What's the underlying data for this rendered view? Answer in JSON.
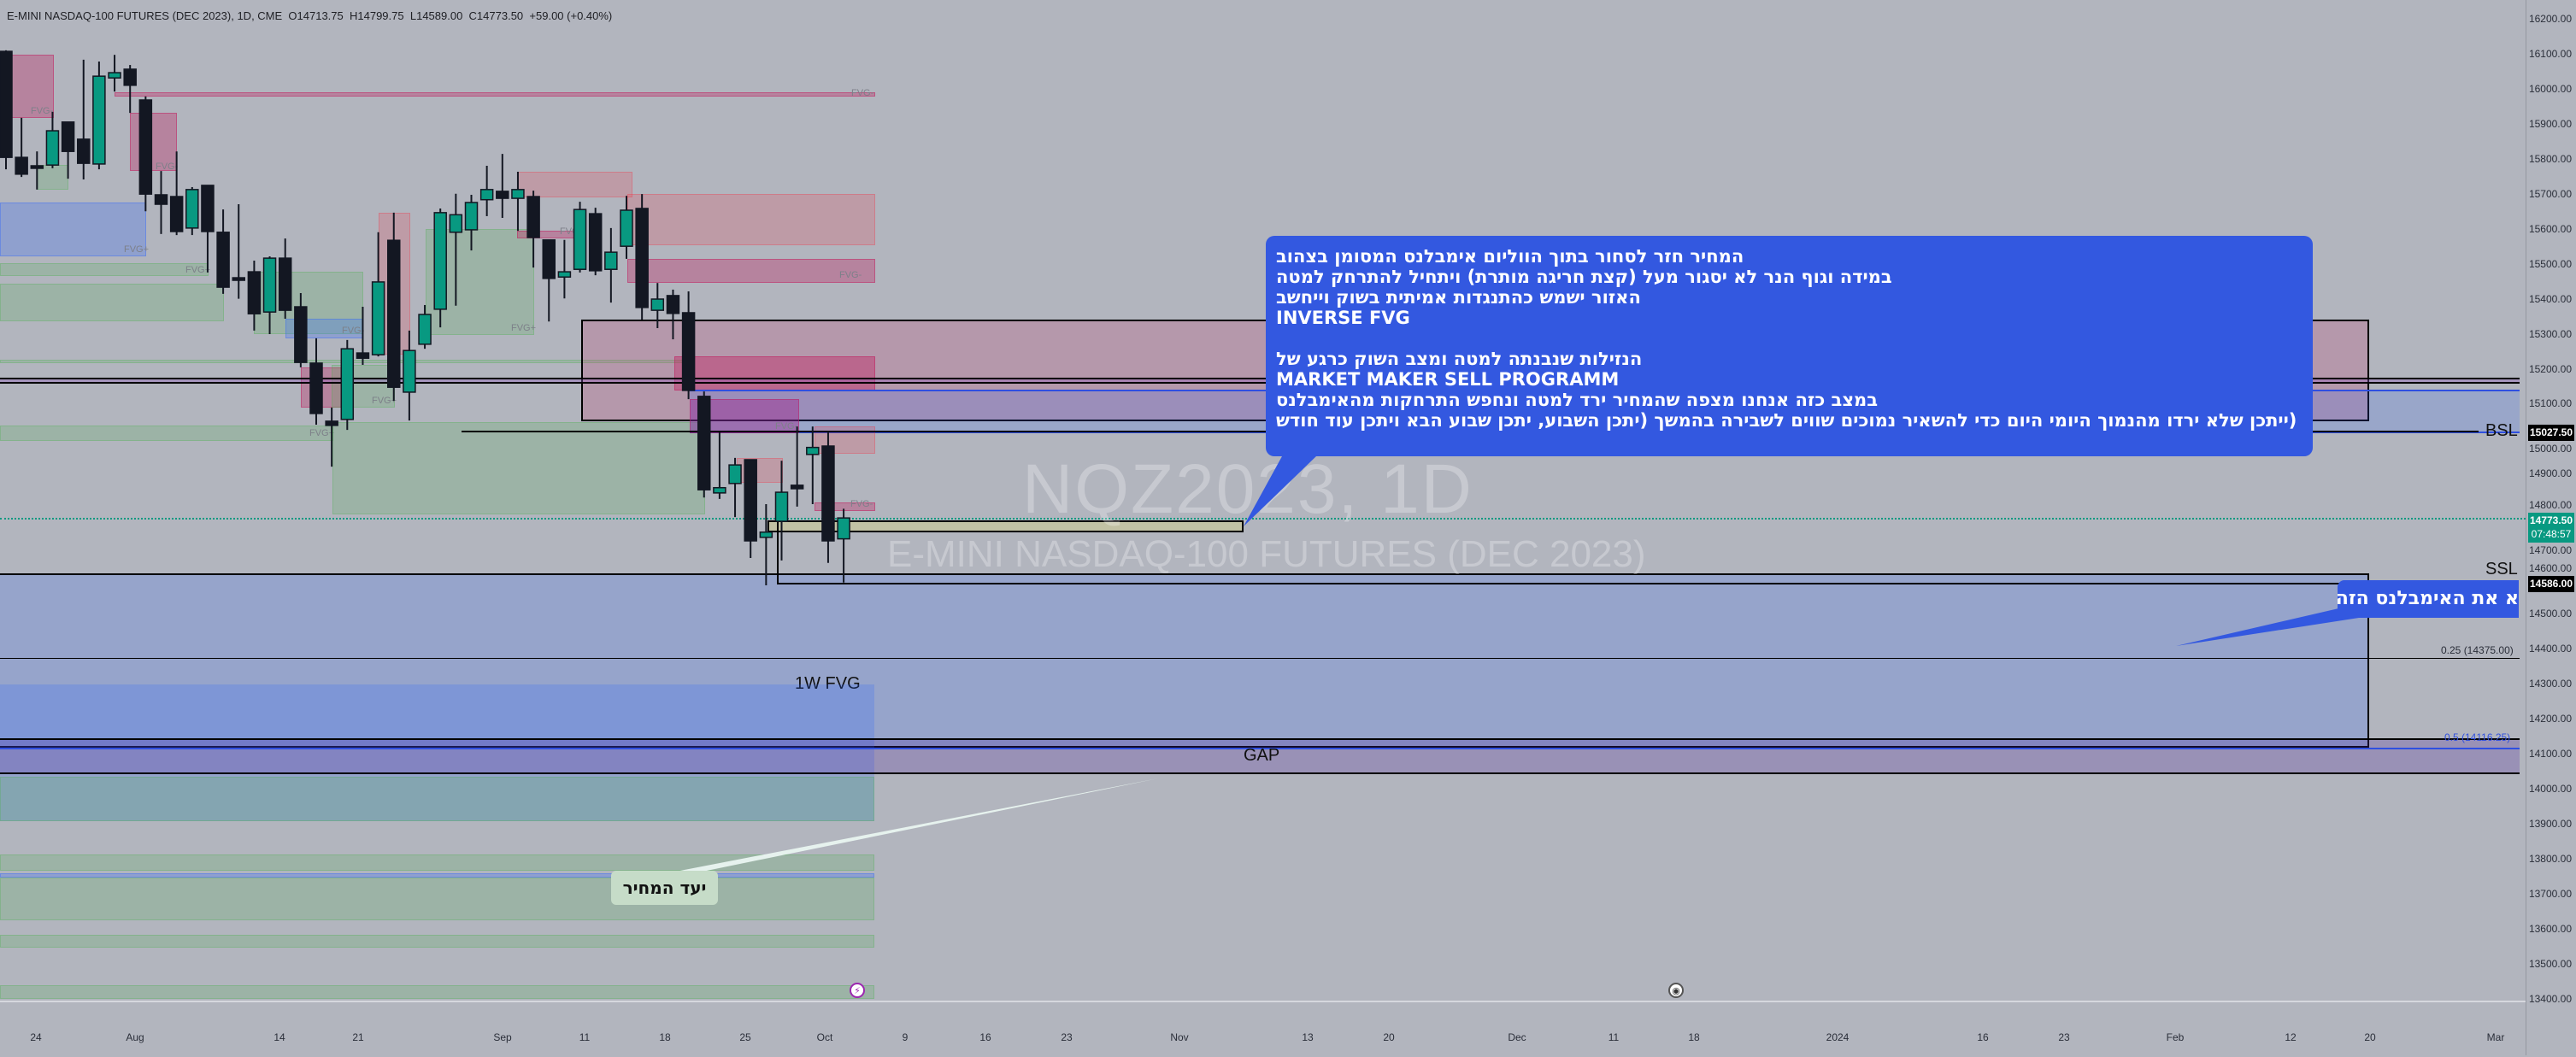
{
  "header": {
    "symbol": "E-MINI NASDAQ-100 FUTURES (DEC 2023), 1D, CME",
    "open": "O14713.75",
    "high": "H14799.75",
    "low": "L14589.00",
    "close": "C14773.50",
    "change": "+59.00 (+0.40%)"
  },
  "watermark": {
    "ticker": "NQZ2023, 1D",
    "name": "E-MINI NASDAQ-100 FUTURES (DEC 2023)"
  },
  "note": {
    "lines": [
      "המחיר חזר לסחור בתוך הווליום אימבלנס המסומן בצהוב",
      "במידה וגוף הנר לא יסגור מעל (קצת חריגה מותרת) ויתחיל להתרחק למטה",
      "האזור ישמש כהתנגדות אמיתית בשוק וייחשב",
      "INVERSE FVG",
      "",
      "הנזילות שנבנתה למטה ומצב השוק כרגע של",
      "MARKET MAKER SELL PROGRAMM",
      "במצב כזה אנחנו מצפה שהמחיר ירד למטה ונחפש התרחקות מהאימבלנס",
      "(ייתכן שלא ירדו מהנמוך היומי היום כדי להשאיר נמוכים שווים לשבירה בהמשך (יתכן השבוע, יתכן שבוע הבא ויתכן עוד חודש"
    ],
    "bg_color": "#3358e0"
  },
  "note2": {
    "text": "א את האימבלנס הזה"
  },
  "target_label": "יעד המחיר",
  "labels": {
    "bsl": "BSL",
    "ssl": "SSL",
    "fvg_1w": "1W FVG",
    "gap": "GAP",
    "fib_025": "0.25 (14375.00)",
    "fib_05": "0.5 (14116.25)",
    "fvg_minus": "FVG-",
    "fvg_plus": "FVG+",
    "fvg": "FVG"
  },
  "price_axis": {
    "ticks": [
      "16200.00",
      "16100.00",
      "16000.00",
      "15900.00",
      "15800.00",
      "15700.00",
      "15600.00",
      "15500.00",
      "15400.00",
      "15300.00",
      "15200.00",
      "15100.00",
      "15000.00",
      "14900.00",
      "14800.00",
      "14700.00",
      "14600.00",
      "14500.00",
      "14400.00",
      "14300.00",
      "14200.00",
      "14100.00",
      "14000.00",
      "13900.00",
      "13800.00",
      "13700.00",
      "13600.00",
      "13500.00",
      "13400.00"
    ],
    "bsl_price": "15027.50",
    "last_price": "14773.50",
    "countdown": "07:48:57",
    "ssl_price": "14586.00",
    "up_color": "#089981",
    "down_color": "#131722"
  },
  "time_axis": {
    "ticks": [
      "24",
      "Aug",
      "14",
      "21",
      "Sep",
      "11",
      "18",
      "25",
      "Oct",
      "9",
      "16",
      "23",
      "Nov",
      "13",
      "20",
      "Dec",
      "11",
      "18",
      "2024",
      "16",
      "23",
      "Feb",
      "12",
      "20",
      "Mar"
    ]
  },
  "chart_data": {
    "type": "candlestick",
    "title": "E-MINI NASDAQ-100 FUTURES (DEC 2023), 1D, CME",
    "ylim": [
      13400,
      16200
    ],
    "fields": [
      "date",
      "open",
      "high",
      "low",
      "close"
    ],
    "candles": [
      [
        "2023-07-18",
        16107,
        16110,
        15770,
        15804
      ],
      [
        "2023-07-19",
        15804,
        15917,
        15748,
        15756
      ],
      [
        "2023-07-20",
        15780,
        15821,
        15712,
        15775
      ],
      [
        "2023-07-21",
        15782,
        15934,
        15773,
        15880
      ],
      [
        "2023-07-24",
        15905,
        15905,
        15743,
        15821
      ],
      [
        "2023-07-25",
        15856,
        16083,
        15741,
        15787
      ],
      [
        "2023-07-26",
        15785,
        16078,
        15770,
        16036
      ],
      [
        "2023-07-27",
        16031,
        16097,
        15992,
        16046
      ],
      [
        "2023-07-28",
        16056,
        16068,
        15931,
        16010
      ],
      [
        "2023-07-31",
        15968,
        15978,
        15650,
        15699
      ],
      [
        "2023-08-01",
        15697,
        15765,
        15585,
        15670
      ],
      [
        "2023-08-02",
        15692,
        15821,
        15582,
        15592
      ],
      [
        "2023-08-03",
        15602,
        15719,
        15582,
        15712
      ],
      [
        "2023-08-04",
        15724,
        15724,
        15475,
        15592
      ],
      [
        "2023-08-07",
        15590,
        15655,
        15414,
        15433
      ],
      [
        "2023-08-08",
        15460,
        15670,
        15400,
        15455
      ],
      [
        "2023-08-09",
        15477,
        15509,
        15309,
        15357
      ],
      [
        "2023-08-10",
        15362,
        15521,
        15299,
        15516
      ],
      [
        "2023-08-11",
        15516,
        15572,
        15343,
        15367
      ],
      [
        "2023-08-14",
        15377,
        15416,
        15204,
        15218
      ],
      [
        "2023-08-15",
        15216,
        15287,
        15040,
        15072
      ],
      [
        "2023-08-16",
        15050,
        15089,
        14920,
        15038
      ],
      [
        "2023-08-17",
        15055,
        15282,
        15025,
        15257
      ],
      [
        "2023-08-18",
        15245,
        15377,
        15211,
        15230
      ],
      [
        "2023-08-21",
        15240,
        15590,
        15235,
        15448
      ],
      [
        "2023-08-22",
        15567,
        15646,
        15108,
        15147
      ],
      [
        "2023-08-23",
        15133,
        15309,
        15052,
        15252
      ],
      [
        "2023-08-24",
        15270,
        15382,
        15257,
        15355
      ],
      [
        "2023-08-25",
        15370,
        15658,
        15318,
        15646
      ],
      [
        "2023-08-28",
        15590,
        15700,
        15380,
        15640
      ],
      [
        "2023-08-29",
        15597,
        15697,
        15538,
        15675
      ],
      [
        "2023-08-30",
        15683,
        15780,
        15636,
        15712
      ],
      [
        "2023-08-31",
        15707,
        15814,
        15631,
        15687
      ],
      [
        "2023-09-01",
        15687,
        15763,
        15594,
        15712
      ],
      [
        "2023-09-05",
        15692,
        15709,
        15489,
        15575
      ],
      [
        "2023-09-06",
        15568,
        15568,
        15335,
        15458
      ],
      [
        "2023-09-07",
        15462,
        15568,
        15401,
        15477
      ],
      [
        "2023-09-08",
        15484,
        15677,
        15475,
        15655
      ],
      [
        "2023-09-11",
        15643,
        15660,
        15467,
        15480
      ],
      [
        "2023-09-12",
        15484,
        15602,
        15389,
        15533
      ],
      [
        "2023-09-13",
        15550,
        15694,
        15514,
        15653
      ],
      [
        "2023-09-14",
        15658,
        15699,
        15340,
        15375
      ],
      [
        "2023-09-15",
        15367,
        15445,
        15316,
        15399
      ],
      [
        "2023-09-18",
        15409,
        15426,
        15284,
        15358
      ],
      [
        "2023-09-19",
        15360,
        15421,
        15113,
        15138
      ],
      [
        "2023-09-20",
        15121,
        15135,
        14832,
        14854
      ],
      [
        "2023-09-21",
        14845,
        15018,
        14828,
        14860
      ],
      [
        "2023-09-22",
        14872,
        14945,
        14776,
        14925
      ],
      [
        "2023-09-25",
        14940,
        14940,
        14659,
        14708
      ],
      [
        "2023-09-26",
        14718,
        14813,
        14581,
        14733
      ],
      [
        "2023-09-27",
        14764,
        14937,
        14652,
        14847
      ],
      [
        "2023-09-28",
        14867,
        15035,
        14806,
        14857
      ],
      [
        "2023-09-29",
        14955,
        15035,
        14813,
        14975
      ],
      [
        "2023-10-02",
        14979,
        15021,
        14645,
        14708
      ],
      [
        "2023-10-03",
        14713.75,
        14799.75,
        14589,
        14773.5
      ]
    ]
  }
}
